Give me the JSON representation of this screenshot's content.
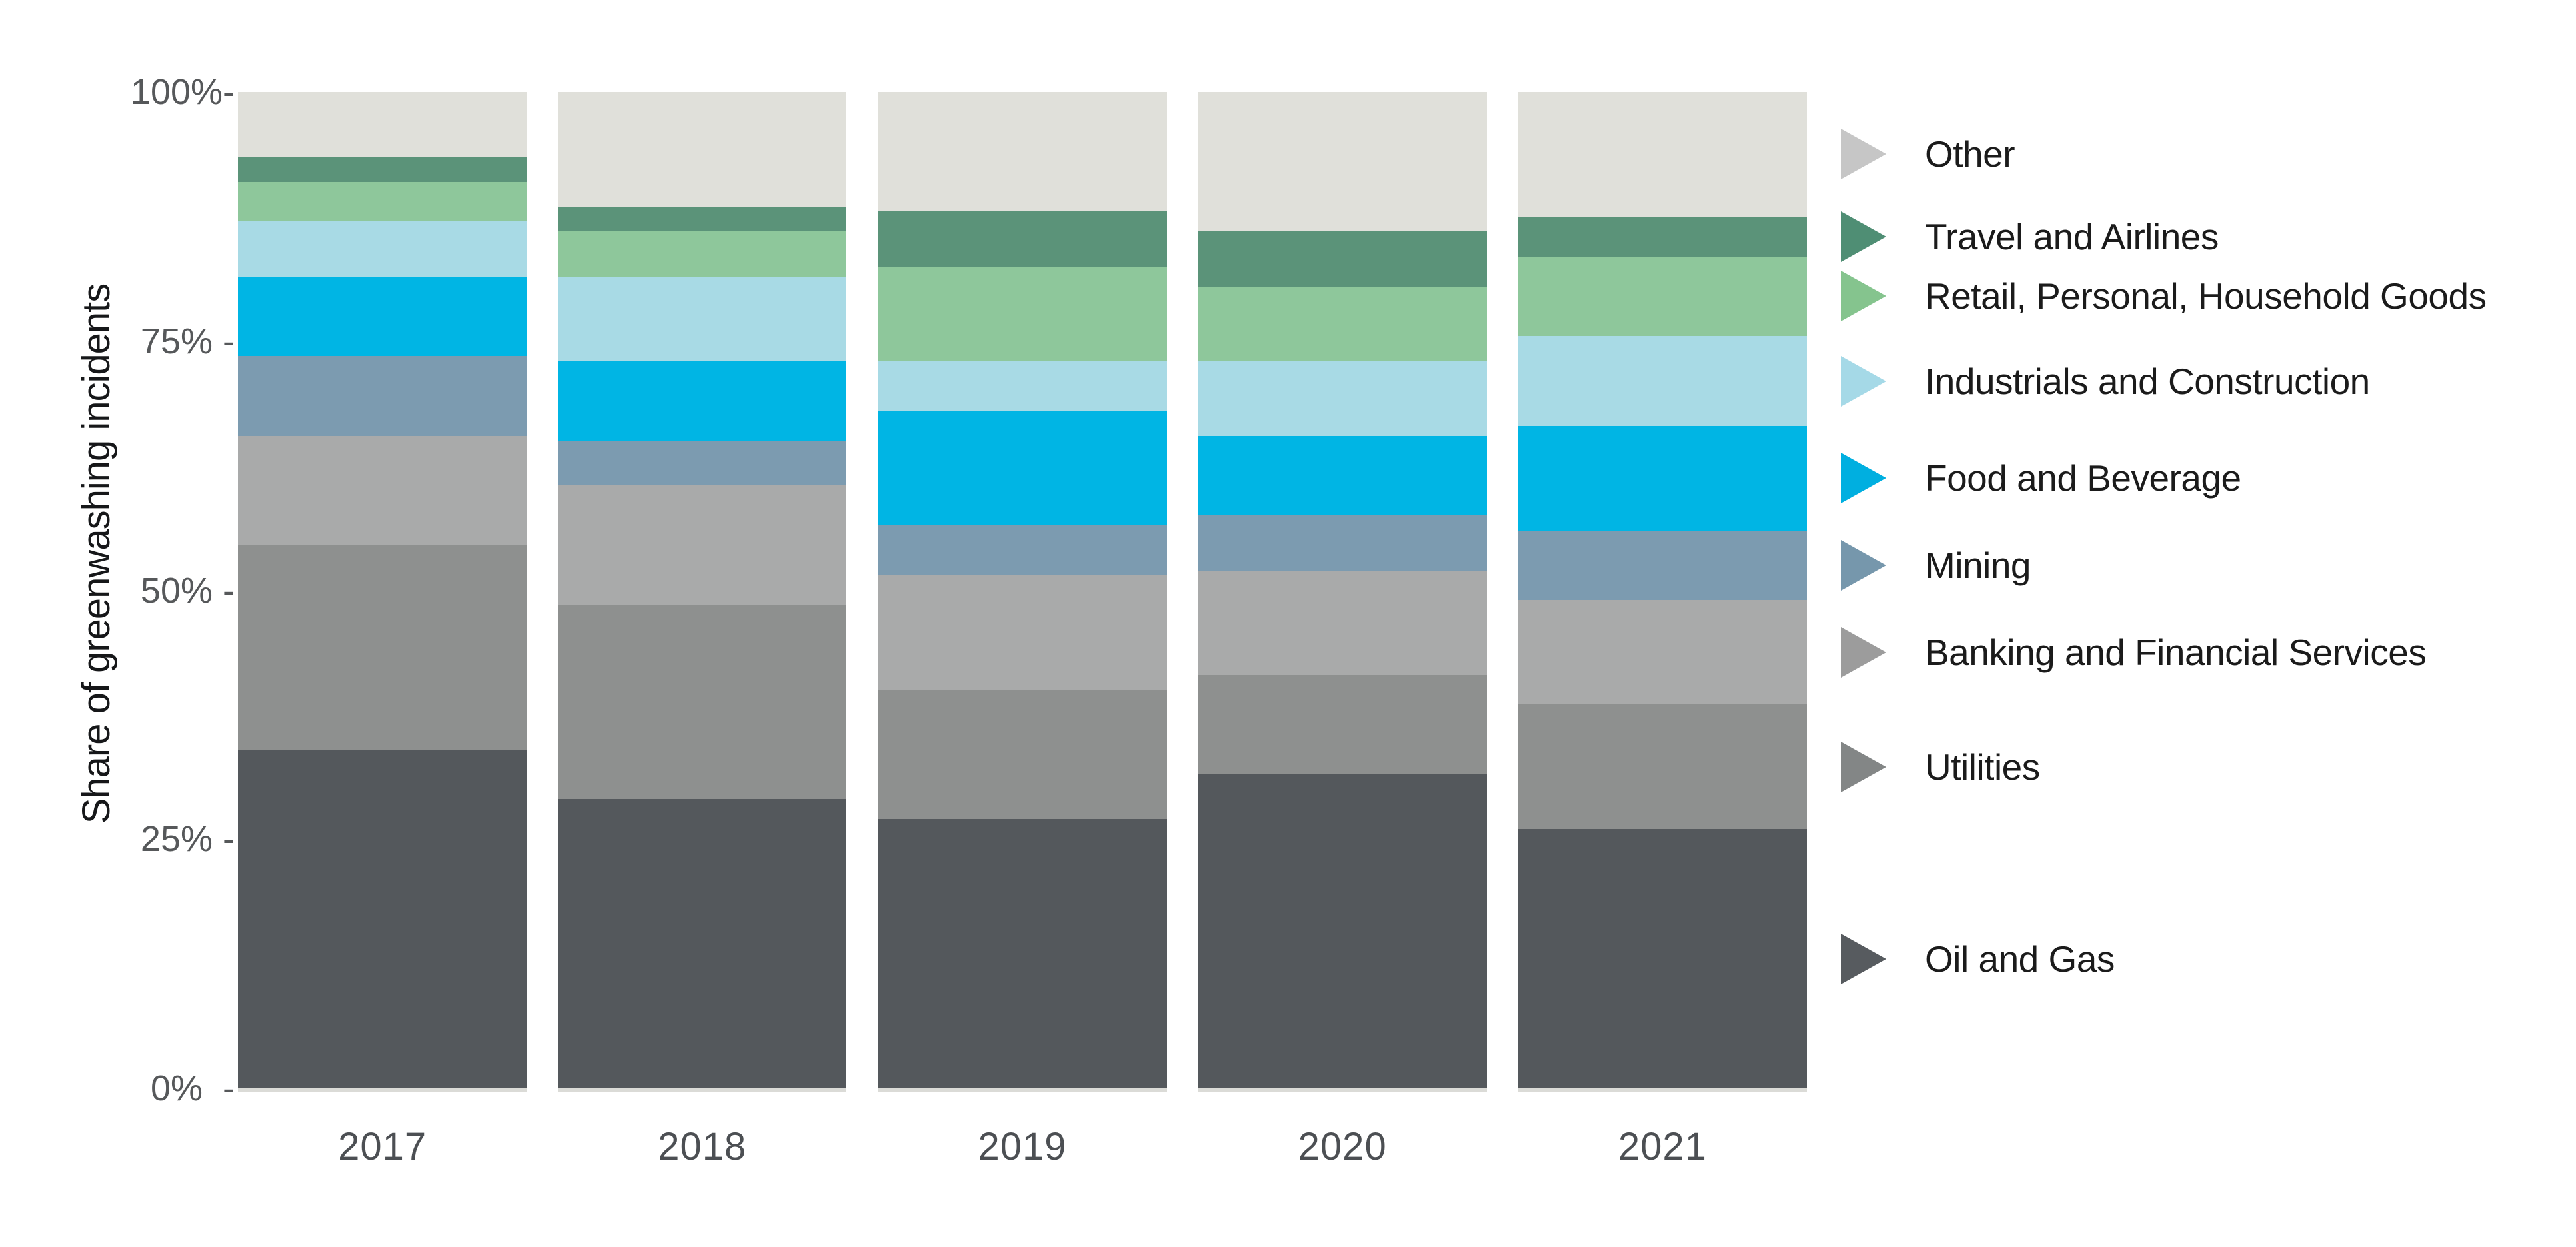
{
  "chart_data": {
    "type": "bar",
    "stacked": true,
    "unit": "percent",
    "title": "",
    "xlabel": "",
    "ylabel": "Share of greenwashing incidents",
    "ylim": [
      0,
      100
    ],
    "grid": false,
    "legend_position": "right",
    "categories": [
      "2017",
      "2018",
      "2019",
      "2020",
      "2021"
    ],
    "yticks": [
      {
        "label": "100%-",
        "value": 100
      },
      {
        "label": "75% -",
        "value": 75
      },
      {
        "label": "50% -",
        "value": 50
      },
      {
        "label": "25% -",
        "value": 25
      },
      {
        "label": "0%  -",
        "value": 0
      }
    ],
    "series": [
      {
        "name": "Other",
        "color": "#e0e0da",
        "legend_color": "#c6c6c6",
        "values": [
          6.5,
          11.5,
          12.0,
          14.0,
          12.5
        ]
      },
      {
        "name": "Travel and Airlines",
        "color": "#5b9379",
        "legend_color": "#4f8e74",
        "values": [
          2.5,
          2.5,
          5.5,
          5.5,
          4.0
        ]
      },
      {
        "name": "Retail, Personal, Household Goods",
        "color": "#8ec79b",
        "legend_color": "#85c48e",
        "values": [
          4.0,
          4.5,
          9.5,
          7.5,
          8.0
        ]
      },
      {
        "name": "Industrials and Construction",
        "color": "#a8dae5",
        "legend_color": "#a5d9e7",
        "values": [
          5.5,
          8.5,
          5.0,
          7.5,
          9.0
        ]
      },
      {
        "name": "Food and Beverage",
        "color": "#00b5e4",
        "legend_color": "#00afe0",
        "values": [
          8.0,
          8.0,
          11.5,
          8.0,
          10.5
        ]
      },
      {
        "name": "Mining",
        "color": "#7c9bb0",
        "legend_color": "#7697ac",
        "values": [
          8.0,
          4.5,
          5.0,
          5.5,
          7.0
        ]
      },
      {
        "name": "Banking and Financial Services",
        "color": "#a9aaaa",
        "legend_color": "#9c9c9c",
        "values": [
          11.0,
          12.0,
          11.5,
          10.5,
          10.5
        ]
      },
      {
        "name": "Utilities",
        "color": "#8e908f",
        "legend_color": "#838686",
        "values": [
          20.5,
          19.5,
          13.0,
          10.0,
          12.5
        ]
      },
      {
        "name": "Oil and Gas",
        "color": "#54585c",
        "legend_color": "#575b5f",
        "values": [
          34.0,
          29.0,
          27.0,
          31.5,
          26.0
        ]
      }
    ]
  }
}
